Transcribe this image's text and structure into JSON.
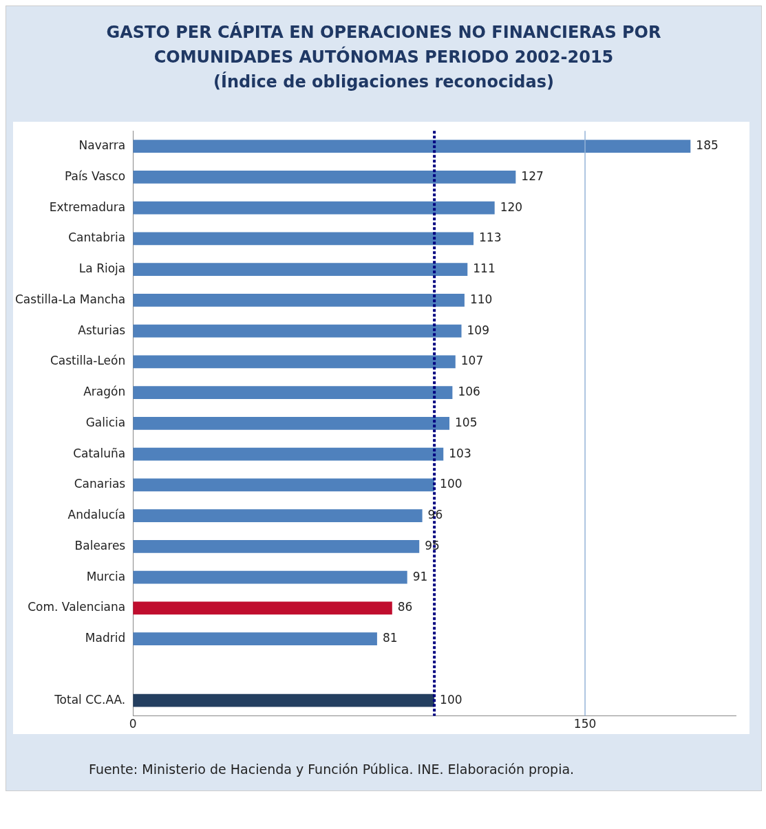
{
  "chart_data": {
    "type": "bar",
    "orientation": "horizontal",
    "title": "GASTO PER CÁPITA EN OPERACIONES NO FINANCIERAS POR\nCOMUNIDADES AUTÓNOMAS PERIODO 2002-2015\n(Índice de obligaciones reconocidas)",
    "categories": [
      "Navarra",
      "País Vasco",
      "Extremadura",
      "Cantabria",
      "La Rioja",
      "Castilla-La Mancha",
      "Asturias",
      "Castilla-León",
      "Aragón",
      "Galicia",
      "Cataluña",
      "Canarias",
      "Andalucía",
      "Baleares",
      "Murcia",
      "Com. Valenciana",
      "Madrid",
      null,
      "Total CC.AA."
    ],
    "values": [
      185,
      127,
      120,
      113,
      111,
      110,
      109,
      107,
      106,
      105,
      103,
      100,
      96,
      95,
      91,
      86,
      81,
      null,
      100
    ],
    "colors": [
      "#4f81bd",
      "#4f81bd",
      "#4f81bd",
      "#4f81bd",
      "#4f81bd",
      "#4f81bd",
      "#4f81bd",
      "#4f81bd",
      "#4f81bd",
      "#4f81bd",
      "#4f81bd",
      "#4f81bd",
      "#4f81bd",
      "#4f81bd",
      "#4f81bd",
      "#c00d2e",
      "#4f81bd",
      null,
      "#243f60"
    ],
    "xlim": [
      0,
      200
    ],
    "xticks": [
      0,
      150
    ],
    "legend": false,
    "data_labels": true,
    "ref_lines": [
      {
        "axis": "x",
        "value": 150,
        "color": "#95b3d7",
        "line_style": "solid"
      },
      {
        "axis": "x",
        "value": 100,
        "color": "#000080",
        "line_style": "dotted"
      }
    ],
    "annotations": [
      "Fuente: Ministerio de Hacienda y Función Pública. INE. Elaboración propia."
    ]
  }
}
